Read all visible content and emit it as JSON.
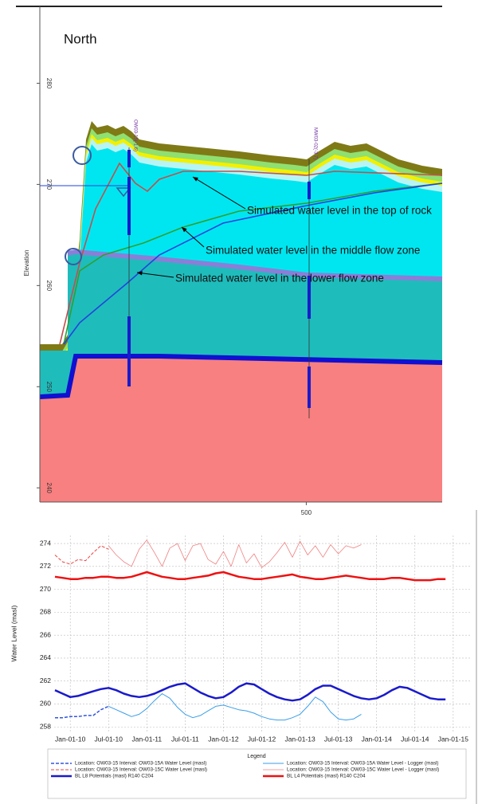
{
  "chart_data": [
    {
      "type": "cross-section",
      "title": "North",
      "y_label": "Elevation",
      "ylim": [
        238.6,
        287.6
      ],
      "yticks": [
        240,
        250,
        260,
        270,
        280
      ],
      "xlim": [
        400,
        551
      ],
      "xticks": [
        500
      ],
      "wells": [
        "OW03-15(-1.6)",
        "MW03-02(-3.7)"
      ],
      "annotations": [
        "Simulated water level in the top of rock",
        "Simulated water level in the middle flow zone",
        "Simulated water level in the lower flow zone"
      ]
    },
    {
      "type": "line",
      "y_label": "Water Level (masl)",
      "legend_title": "Legend",
      "grid": true,
      "ylim": [
        257.6,
        274.7
      ],
      "yticks": [
        258,
        260,
        262,
        264,
        266,
        268,
        270,
        272,
        274
      ],
      "xlim": [
        2009.79,
        2015.22
      ],
      "xticks": [
        {
          "value": 2010,
          "label": "Jan-01-10"
        },
        {
          "value": 2010.5,
          "label": "Jul-01-10"
        },
        {
          "value": 2011,
          "label": "Jan-01-11"
        },
        {
          "value": 2011.5,
          "label": "Jul-01-11"
        },
        {
          "value": 2012,
          "label": "Jan-01-12"
        },
        {
          "value": 2012.5,
          "label": "Jul-01-12"
        },
        {
          "value": 2013,
          "label": "Jan-01-13"
        },
        {
          "value": 2013.5,
          "label": "Jul-01-13"
        },
        {
          "value": 2014,
          "label": "Jan-01-14"
        },
        {
          "value": 2014.5,
          "label": "Jul-01-14"
        },
        {
          "value": 2015,
          "label": "Jan-01-15"
        }
      ],
      "x": [
        2009.8,
        2009.9,
        2010,
        2010.1,
        2010.2,
        2010.3,
        2010.4,
        2010.5,
        2010.6,
        2010.7,
        2010.8,
        2010.9,
        2011,
        2011.1,
        2011.2,
        2011.3,
        2011.4,
        2011.5,
        2011.6,
        2011.7,
        2011.8,
        2011.9,
        2012,
        2012.1,
        2012.2,
        2012.3,
        2012.4,
        2012.5,
        2012.6,
        2012.7,
        2012.8,
        2012.9,
        2013,
        2013.1,
        2013.2,
        2013.3,
        2013.4,
        2013.5,
        2013.6,
        2013.7,
        2013.8,
        2013.9,
        2014,
        2014.1,
        2014.2,
        2014.3,
        2014.4,
        2014.5,
        2014.6,
        2014.7,
        2014.8,
        2014.9
      ],
      "series": [
        {
          "name": "Location: OW03-15 Interval: OW03-15A Water Level (masl)",
          "color": "#3355dd",
          "width": 1.5,
          "dashed": true,
          "values": [
            258.8,
            258.8,
            258.9,
            258.9,
            259.0,
            259.0,
            259.5,
            259.8,
            null,
            null,
            null,
            null,
            null,
            null,
            null,
            null,
            null,
            null,
            null,
            null,
            null,
            null,
            null,
            null,
            null,
            null,
            null,
            null,
            null,
            null,
            null,
            null,
            null,
            null,
            null,
            null,
            null,
            null,
            null,
            null,
            null,
            null,
            null,
            null,
            null,
            null,
            null,
            null,
            null,
            null,
            null,
            null
          ]
        },
        {
          "name": "Location: OW03-15 Interval: OW03-15C Water Level (masl)",
          "color": "#ee4444",
          "width": 1,
          "dashed": true,
          "values": [
            273.0,
            272.4,
            272.2,
            272.6,
            272.5,
            273.2,
            273.8,
            273.5,
            null,
            null,
            null,
            null,
            null,
            null,
            null,
            null,
            null,
            null,
            null,
            null,
            null,
            null,
            null,
            null,
            null,
            null,
            null,
            null,
            null,
            null,
            null,
            null,
            null,
            null,
            null,
            null,
            null,
            null,
            null,
            null,
            null,
            null,
            null,
            null,
            null,
            null,
            null,
            null,
            null,
            null,
            null,
            null
          ]
        },
        {
          "name": "BL L8 Potentials  (masl) R140 C204",
          "color": "#1a1acc",
          "width": 2.5,
          "dashed": false,
          "values": [
            261.2,
            260.9,
            260.6,
            260.7,
            260.9,
            261.1,
            261.3,
            261.4,
            261.2,
            260.9,
            260.7,
            260.6,
            260.7,
            260.9,
            261.2,
            261.5,
            261.7,
            261.8,
            261.4,
            261.0,
            260.7,
            260.5,
            260.6,
            261.0,
            261.5,
            261.8,
            261.7,
            261.3,
            260.9,
            260.6,
            260.4,
            260.3,
            260.4,
            260.8,
            261.3,
            261.6,
            261.6,
            261.3,
            261.0,
            260.7,
            260.5,
            260.4,
            260.5,
            260.8,
            261.2,
            261.5,
            261.4,
            261.1,
            260.8,
            260.5,
            260.4,
            260.4
          ]
        },
        {
          "name": "Location: OW03-15 Interval: OW03-15A Water Level - Logger (masl)",
          "color": "#3a9ee8",
          "width": 1,
          "dashed": false,
          "values": [
            null,
            null,
            null,
            null,
            null,
            null,
            null,
            259.8,
            259.5,
            259.2,
            258.9,
            259.1,
            259.6,
            260.3,
            260.9,
            260.5,
            259.7,
            259.1,
            258.8,
            259.0,
            259.4,
            259.8,
            259.9,
            259.7,
            259.5,
            259.4,
            259.2,
            258.9,
            258.7,
            258.6,
            258.6,
            258.8,
            259.1,
            259.8,
            260.6,
            260.2,
            259.3,
            258.7,
            258.6,
            258.7,
            259.1,
            null,
            null,
            null,
            null,
            null,
            null,
            null,
            null,
            null,
            null,
            null
          ]
        },
        {
          "name": "Location: OW03-15 Interval: OW03-15C Water Level - Logger (masl)",
          "color": "#f08080",
          "width": 0.8,
          "dashed": false,
          "values": [
            null,
            null,
            null,
            null,
            null,
            null,
            null,
            273.8,
            273.0,
            272.4,
            272.0,
            273.5,
            274.3,
            273.2,
            272.0,
            273.6,
            274.0,
            272.5,
            273.8,
            274.0,
            272.6,
            272.2,
            273.3,
            272.0,
            273.9,
            272.3,
            273.1,
            271.9,
            272.4,
            273.2,
            274.1,
            272.8,
            274.2,
            273.0,
            273.8,
            272.8,
            273.9,
            273.1,
            273.8,
            273.6,
            273.9,
            null,
            null,
            null,
            null,
            null,
            null,
            null,
            null,
            null,
            null,
            null
          ]
        },
        {
          "name": "BL L4 Potentials  (masl) R140 C204",
          "color": "#ee1111",
          "width": 2.5,
          "dashed": false,
          "values": [
            271.1,
            271.0,
            270.9,
            270.9,
            271.0,
            271.0,
            271.1,
            271.1,
            271.0,
            271.0,
            271.1,
            271.3,
            271.5,
            271.3,
            271.1,
            271.0,
            270.9,
            270.9,
            271.0,
            271.1,
            271.2,
            271.4,
            271.5,
            271.3,
            271.1,
            271.0,
            270.9,
            270.9,
            271.0,
            271.1,
            271.2,
            271.3,
            271.1,
            271.0,
            270.9,
            270.9,
            271.0,
            271.1,
            271.2,
            271.1,
            271.0,
            270.9,
            270.9,
            270.9,
            271.0,
            271.0,
            270.9,
            270.8,
            270.8,
            270.8,
            270.9,
            270.9
          ]
        }
      ]
    }
  ]
}
